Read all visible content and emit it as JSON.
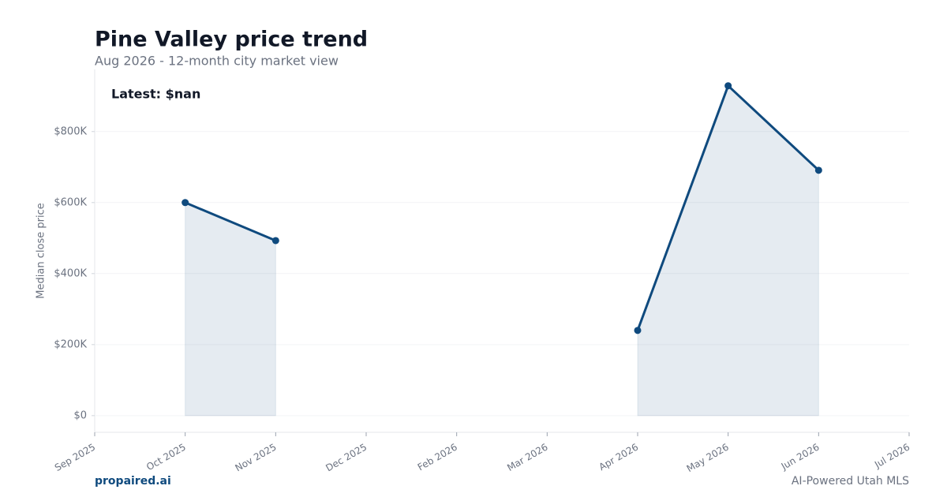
{
  "chart_data": {
    "type": "line",
    "title": "Pine Valley price trend",
    "subtitle": "Aug 2026 - 12-month city market view",
    "annotation": "Latest: $nan",
    "y_label": "Median close price",
    "footer_left": "propaired.ai",
    "footer_right": "AI-Powered Utah MLS",
    "categories": [
      "Sep 2025",
      "Oct 2025",
      "Nov 2025",
      "Dec 2025",
      "Feb 2026",
      "Mar 2026",
      "Apr 2026",
      "May 2026",
      "Jun 2026",
      "Jul 2026"
    ],
    "series": [
      {
        "name": "Median close price",
        "color": "#0f4a7e",
        "values": [
          null,
          600000,
          493000,
          null,
          null,
          null,
          240000,
          929000,
          691000,
          null
        ]
      }
    ],
    "ylim": [
      -47000,
      975000
    ],
    "yticks": [
      {
        "value": 0,
        "label": "$0"
      },
      {
        "value": 200000,
        "label": "$200K"
      },
      {
        "value": 400000,
        "label": "$400K"
      },
      {
        "value": 600000,
        "label": "$600K"
      },
      {
        "value": 800000,
        "label": "$800K"
      }
    ],
    "grid": true
  }
}
